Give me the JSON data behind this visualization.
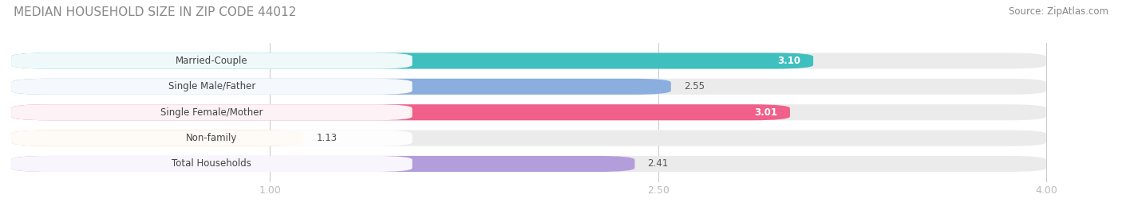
{
  "title": "MEDIAN HOUSEHOLD SIZE IN ZIP CODE 44012",
  "source": "Source: ZipAtlas.com",
  "categories": [
    "Married-Couple",
    "Single Male/Father",
    "Single Female/Mother",
    "Non-family",
    "Total Households"
  ],
  "values": [
    3.1,
    2.55,
    3.01,
    1.13,
    2.41
  ],
  "bar_colors": [
    "#40bfbf",
    "#8aaede",
    "#f0608a",
    "#f5c98a",
    "#b39ddb"
  ],
  "value_inside": [
    true,
    false,
    true,
    false,
    false
  ],
  "value_inside_color": "#ffffff",
  "value_outside_color": "#555555",
  "xticks": [
    1.0,
    2.5,
    4.0
  ],
  "xmin": 0.0,
  "xmax": 4.0,
  "title_fontsize": 11,
  "source_fontsize": 8.5,
  "label_fontsize": 8.5,
  "value_fontsize": 8.5,
  "tick_fontsize": 9,
  "bar_height": 0.62,
  "background_color": "#ffffff",
  "title_color": "#888888",
  "source_color": "#888888",
  "label_color": "#444444",
  "tick_color": "#bbbbbb",
  "bg_bar_color": "#ebebeb",
  "grid_color": "#cccccc"
}
